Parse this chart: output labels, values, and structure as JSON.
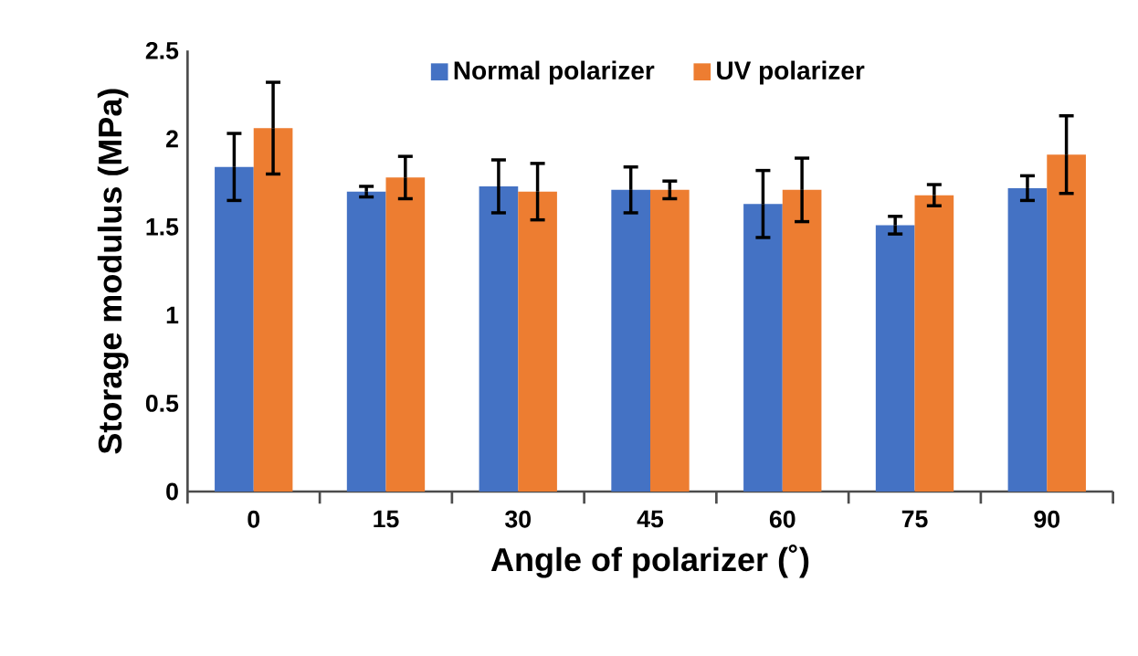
{
  "chart_data": {
    "type": "bar",
    "xlabel": "Angle of polarizer (˚)",
    "ylabel": "Storage modulus (MPa)",
    "categories": [
      "0",
      "15",
      "30",
      "45",
      "60",
      "75",
      "90"
    ],
    "series": [
      {
        "name": "Normal polarizer",
        "color": "#4472c4",
        "values": [
          1.84,
          1.7,
          1.73,
          1.71,
          1.63,
          1.51,
          1.72
        ],
        "errors": [
          0.19,
          0.03,
          0.15,
          0.13,
          0.19,
          0.05,
          0.07
        ]
      },
      {
        "name": "UV polarizer",
        "color": "#ed7d31",
        "values": [
          2.06,
          1.78,
          1.7,
          1.71,
          1.71,
          1.68,
          1.91
        ],
        "errors": [
          0.26,
          0.12,
          0.16,
          0.05,
          0.18,
          0.06,
          0.22
        ]
      }
    ],
    "ylim": [
      0,
      2.5
    ],
    "yticks": [
      0,
      0.5,
      1,
      1.5,
      2,
      2.5
    ],
    "grid": false,
    "legend": "top"
  }
}
